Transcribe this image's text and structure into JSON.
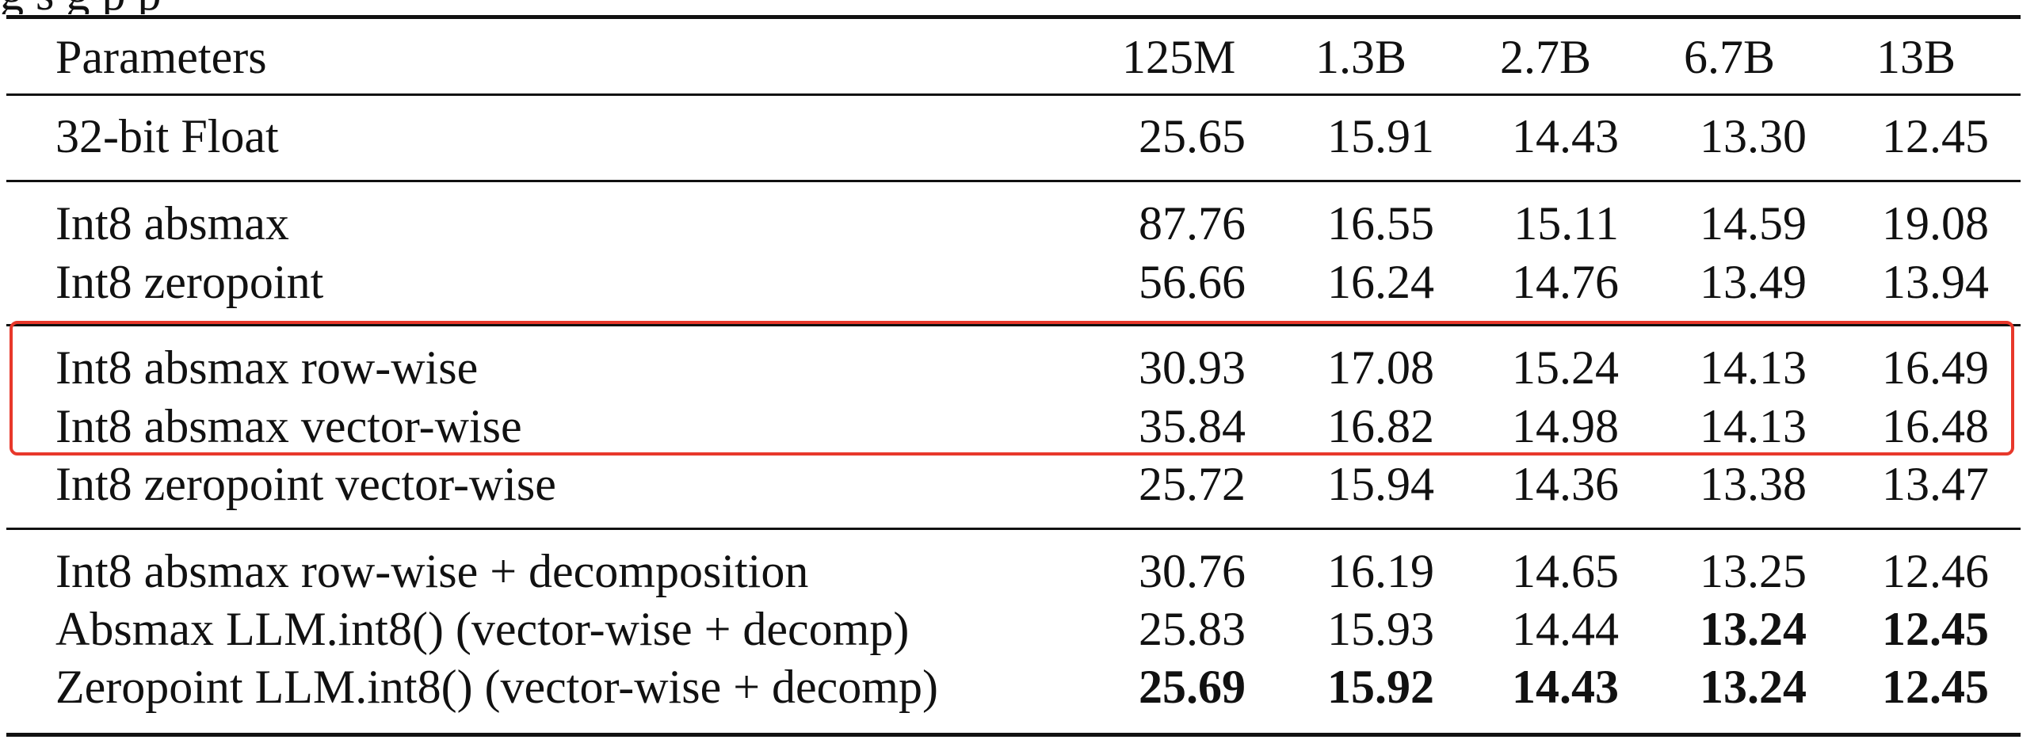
{
  "caption_fragment": "g   s   g                                              p                  p",
  "table": {
    "header": {
      "label": "Parameters",
      "columns": [
        "125M",
        "1.3B",
        "2.7B",
        "6.7B",
        "13B"
      ]
    },
    "groups": [
      {
        "rows": [
          {
            "label": "32-bit Float",
            "values": [
              "25.65",
              "15.91",
              "14.43",
              "13.30",
              "12.45"
            ],
            "bold": [
              false,
              false,
              false,
              false,
              false
            ]
          }
        ]
      },
      {
        "rows": [
          {
            "label": "Int8 absmax",
            "values": [
              "87.76",
              "16.55",
              "15.11",
              "14.59",
              "19.08"
            ],
            "bold": [
              false,
              false,
              false,
              false,
              false
            ]
          },
          {
            "label": "Int8 zeropoint",
            "values": [
              "56.66",
              "16.24",
              "14.76",
              "13.49",
              "13.94"
            ],
            "bold": [
              false,
              false,
              false,
              false,
              false
            ]
          }
        ]
      },
      {
        "rows": [
          {
            "label": "Int8 absmax row-wise",
            "values": [
              "30.93",
              "17.08",
              "15.24",
              "14.13",
              "16.49"
            ],
            "bold": [
              false,
              false,
              false,
              false,
              false
            ],
            "highlighted": true
          },
          {
            "label": "Int8 absmax vector-wise",
            "values": [
              "35.84",
              "16.82",
              "14.98",
              "14.13",
              "16.48"
            ],
            "bold": [
              false,
              false,
              false,
              false,
              false
            ],
            "highlighted": true
          },
          {
            "label": "Int8 zeropoint vector-wise",
            "values": [
              "25.72",
              "15.94",
              "14.36",
              "13.38",
              "13.47"
            ],
            "bold": [
              false,
              false,
              false,
              false,
              false
            ]
          }
        ]
      },
      {
        "rows": [
          {
            "label": "Int8 absmax row-wise + decomposition",
            "values": [
              "30.76",
              "16.19",
              "14.65",
              "13.25",
              "12.46"
            ],
            "bold": [
              false,
              false,
              false,
              false,
              false
            ]
          },
          {
            "label": "Absmax LLM.int8() (vector-wise + decomp)",
            "values": [
              "25.83",
              "15.93",
              "14.44",
              "13.24",
              "12.45"
            ],
            "bold": [
              false,
              false,
              false,
              true,
              true
            ]
          },
          {
            "label": "Zeropoint LLM.int8() (vector-wise + decomp)",
            "values": [
              "25.69",
              "15.92",
              "14.43",
              "13.24",
              "12.45"
            ],
            "bold": [
              true,
              true,
              true,
              true,
              true
            ]
          }
        ]
      }
    ]
  },
  "colors": {
    "text": "#111111",
    "rules": "#111111",
    "highlight_box": "#e8382b",
    "background": "#ffffff"
  }
}
